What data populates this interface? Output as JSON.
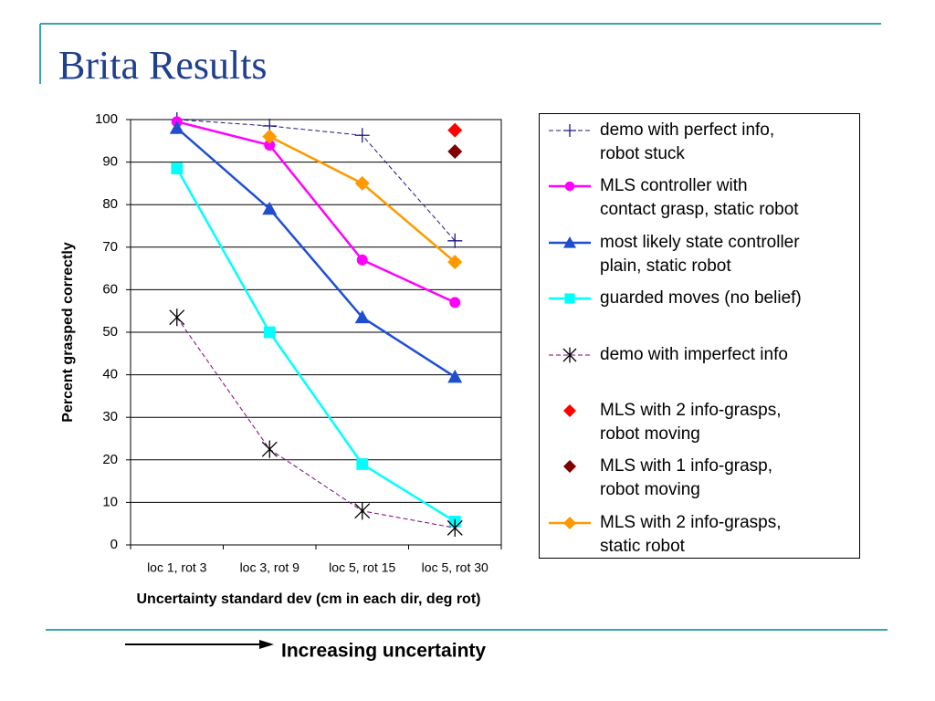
{
  "slide_title": "Brita Results",
  "annotation": "Increasing uncertainty",
  "chart_data": {
    "type": "line",
    "ylabel": "Percent grasped correctly",
    "xlabel": "Uncertainty standard dev (cm in each dir, deg rot)",
    "categories": [
      "loc 1, rot 3",
      "loc 3, rot 9",
      "loc 5, rot 15",
      "loc 5, rot 30"
    ],
    "ylim": [
      0,
      100
    ],
    "yticks": [
      0,
      10,
      20,
      30,
      40,
      50,
      60,
      70,
      80,
      90,
      100
    ],
    "grid": true,
    "series": [
      {
        "name": "demo with perfect info,\nrobot stuck",
        "color": "#1a1a80",
        "marker": "plus",
        "dashed": true,
        "line": true,
        "values": [
          100,
          98.5,
          96.3,
          71.5
        ]
      },
      {
        "name": "MLS controller with\ncontact grasp, static robot",
        "color": "#ff00ff",
        "marker": "circle",
        "dashed": false,
        "line": true,
        "values": [
          99.5,
          94,
          67,
          57
        ]
      },
      {
        "name": "most likely state controller\nplain, static robot",
        "color": "#1f4fd0",
        "marker": "triangle",
        "dashed": false,
        "line": true,
        "values": [
          98,
          79,
          53.5,
          39.5
        ]
      },
      {
        "name": "guarded moves (no belief)",
        "color": "#00ffff",
        "marker": "square",
        "dashed": false,
        "line": true,
        "values": [
          88.5,
          50,
          19,
          5.5
        ]
      },
      {
        "name": "demo with imperfect info",
        "color": "#800080",
        "marker": "asterisk",
        "marker_color": "#000000",
        "dashed": true,
        "line": true,
        "values": [
          53.5,
          22.5,
          8,
          4
        ]
      },
      {
        "name": "MLS with 2 info-grasps,\nrobot moving",
        "color": "#ff0000",
        "marker": "diamond",
        "dashed": false,
        "line": false,
        "values": [
          null,
          null,
          null,
          97.5
        ]
      },
      {
        "name": "MLS with 1 info-grasp,\nrobot moving",
        "color": "#800000",
        "marker": "diamond",
        "dashed": false,
        "line": false,
        "values": [
          null,
          null,
          null,
          92.5
        ]
      },
      {
        "name": "MLS with 2 info-grasps,\nstatic robot",
        "color": "#ff9900",
        "marker": "diamond",
        "dashed": false,
        "line": true,
        "values": [
          null,
          96,
          85,
          66.5
        ]
      }
    ]
  }
}
